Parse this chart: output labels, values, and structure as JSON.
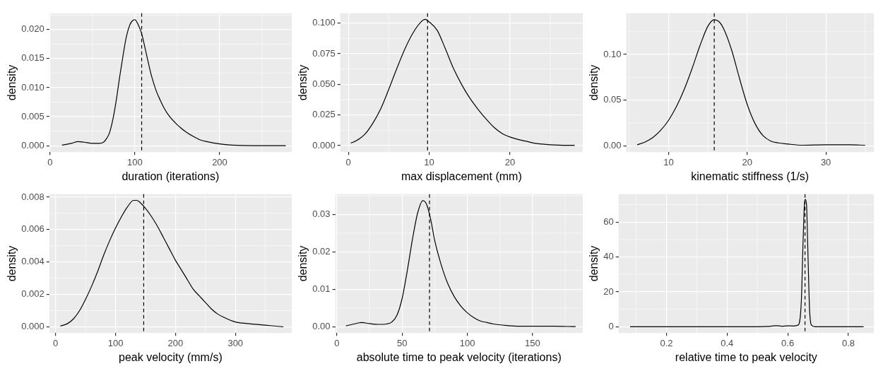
{
  "chart_data": [
    {
      "type": "line",
      "xlabel": "duration (iterations)",
      "ylabel": "density",
      "xlim": [
        -1,
        285
      ],
      "ylim": [
        -0.0011,
        0.0228
      ],
      "xticks": [
        0,
        100,
        200
      ],
      "yticks": [
        {
          "value": 0,
          "label": "0.000"
        },
        {
          "value": 0.005,
          "label": "0.005"
        },
        {
          "value": 0.01,
          "label": "0.010"
        },
        {
          "value": 0.015,
          "label": "0.015"
        },
        {
          "value": 0.02,
          "label": "0.020"
        }
      ],
      "grid": true,
      "ref_lines": [
        {
          "axis": "x",
          "value": 108,
          "line_style": "dashed",
          "color": "#000000"
        }
      ],
      "series": [
        {
          "color": "#000000",
          "x": [
            14,
            25,
            33,
            40,
            50,
            58,
            63,
            66,
            70,
            74,
            78,
            82,
            86,
            90,
            94,
            97,
            100,
            104,
            108,
            112,
            116,
            120,
            125,
            130,
            134,
            140,
            150,
            160,
            170,
            177,
            185,
            200,
            215,
            240,
            278
          ],
          "values": [
            0.0001,
            0.0004,
            0.0007,
            0.0006,
            0.0004,
            0.0004,
            0.0006,
            0.0011,
            0.0022,
            0.0045,
            0.0078,
            0.0118,
            0.0155,
            0.0188,
            0.0208,
            0.0215,
            0.0217,
            0.0208,
            0.0193,
            0.0168,
            0.0142,
            0.0118,
            0.0095,
            0.0078,
            0.0066,
            0.0052,
            0.0036,
            0.0024,
            0.0015,
            0.001,
            0.0007,
            0.0003,
            0.0001,
            0,
            0
          ]
        }
      ]
    },
    {
      "type": "line",
      "xlabel": "max displacement (mm)",
      "ylabel": "density",
      "xlim": [
        -1,
        29
      ],
      "ylim": [
        -0.0053,
        0.108
      ],
      "xticks": [
        0,
        10,
        20
      ],
      "yticks": [
        {
          "value": 0,
          "label": "0.000"
        },
        {
          "value": 0.025,
          "label": "0.025"
        },
        {
          "value": 0.05,
          "label": "0.050"
        },
        {
          "value": 0.075,
          "label": "0.075"
        },
        {
          "value": 0.1,
          "label": "0.100"
        }
      ],
      "grid": true,
      "ref_lines": [
        {
          "axis": "x",
          "value": 9.8,
          "line_style": "dashed",
          "color": "#000000"
        }
      ],
      "series": [
        {
          "color": "#000000",
          "x": [
            0.3,
            1,
            2,
            3,
            4,
            5,
            6,
            7,
            8,
            9,
            9.5,
            10,
            11,
            12,
            13,
            14,
            15,
            16,
            17,
            18,
            19,
            20,
            21,
            22,
            23,
            24,
            25,
            26,
            28
          ],
          "values": [
            0.002,
            0.004,
            0.009,
            0.018,
            0.03,
            0.046,
            0.063,
            0.079,
            0.092,
            0.101,
            0.103,
            0.101,
            0.094,
            0.079,
            0.063,
            0.05,
            0.039,
            0.03,
            0.022,
            0.015,
            0.01,
            0.007,
            0.005,
            0.0035,
            0.002,
            0.0012,
            0.0007,
            0.0004,
            0.0002
          ]
        }
      ]
    },
    {
      "type": "line",
      "xlabel": "kinematic stiffness (1/s)",
      "ylabel": "density",
      "xlim": [
        4.6,
        36.1
      ],
      "ylim": [
        -0.007,
        0.145
      ],
      "xticks": [
        10,
        20,
        30
      ],
      "yticks": [
        {
          "value": 0,
          "label": "0.00"
        },
        {
          "value": 0.05,
          "label": "0.05"
        },
        {
          "value": 0.1,
          "label": "0.10"
        }
      ],
      "grid": true,
      "ref_lines": [
        {
          "axis": "x",
          "value": 15.8,
          "line_style": "dashed",
          "color": "#000000"
        }
      ],
      "series": [
        {
          "color": "#000000",
          "x": [
            6,
            7,
            8,
            9,
            10,
            11,
            12,
            13,
            14,
            15,
            15.8,
            16.5,
            17,
            18,
            19,
            20,
            21,
            22,
            23,
            24,
            25,
            27,
            30,
            33,
            35
          ],
          "values": [
            0.001,
            0.004,
            0.009,
            0.017,
            0.028,
            0.043,
            0.062,
            0.085,
            0.11,
            0.131,
            0.138,
            0.135,
            0.128,
            0.105,
            0.074,
            0.045,
            0.024,
            0.011,
            0.005,
            0.003,
            0.002,
            0.0005,
            0.001,
            0.001,
            0.0005
          ]
        }
      ]
    },
    {
      "type": "line",
      "xlabel": "peak velocity (mm/s)",
      "ylabel": "density",
      "xlim": [
        -10.6,
        394
      ],
      "ylim": [
        -0.00038,
        0.00818
      ],
      "xticks": [
        0,
        100,
        200,
        300
      ],
      "yticks": [
        {
          "value": 0,
          "label": "0.000"
        },
        {
          "value": 0.002,
          "label": "0.002"
        },
        {
          "value": 0.004,
          "label": "0.004"
        },
        {
          "value": 0.006,
          "label": "0.006"
        },
        {
          "value": 0.008,
          "label": "0.008"
        }
      ],
      "grid": true,
      "ref_lines": [
        {
          "axis": "x",
          "value": 147,
          "line_style": "dashed",
          "color": "#000000"
        }
      ],
      "series": [
        {
          "color": "#000000",
          "x": [
            8,
            20,
            30,
            40,
            50,
            60,
            70,
            80,
            90,
            100,
            110,
            120,
            130,
            135,
            140,
            150,
            160,
            170,
            180,
            190,
            200,
            210,
            220,
            230,
            240,
            250,
            260,
            270,
            280,
            300,
            320,
            350,
            380
          ],
          "values": [
            5e-05,
            0.0002,
            0.0005,
            0.001,
            0.0017,
            0.0025,
            0.0034,
            0.0044,
            0.0053,
            0.0061,
            0.0068,
            0.0074,
            0.0078,
            0.0078,
            0.0077,
            0.0073,
            0.0068,
            0.0062,
            0.0055,
            0.0048,
            0.0041,
            0.0035,
            0.0029,
            0.0023,
            0.0019,
            0.0015,
            0.0011,
            0.0008,
            0.0006,
            0.0003,
            0.0002,
            0.0001,
            0
          ]
        }
      ]
    },
    {
      "type": "line",
      "xlabel": "absolute time to peak velocity (iterations)",
      "ylabel": "density",
      "xlim": [
        -1.3,
        188.5
      ],
      "ylim": [
        -0.0017,
        0.0354
      ],
      "xticks": [
        0,
        50,
        100,
        150
      ],
      "yticks": [
        {
          "value": 0,
          "label": "0.00"
        },
        {
          "value": 0.01,
          "label": "0.01"
        },
        {
          "value": 0.02,
          "label": "0.02"
        },
        {
          "value": 0.03,
          "label": "0.03"
        }
      ],
      "grid": true,
      "ref_lines": [
        {
          "axis": "x",
          "value": 71,
          "line_style": "dashed",
          "color": "#000000"
        }
      ],
      "series": [
        {
          "color": "#000000",
          "x": [
            7,
            13,
            19,
            25,
            32,
            38,
            42,
            46,
            50,
            54,
            58,
            62,
            66,
            69,
            72,
            75,
            80,
            85,
            90,
            95,
            100,
            105,
            110,
            115,
            120,
            130,
            140,
            150,
            165,
            183
          ],
          "values": [
            0.0002,
            0.0007,
            0.0011,
            0.0008,
            0.0006,
            0.0007,
            0.0012,
            0.003,
            0.0075,
            0.015,
            0.0235,
            0.0305,
            0.0337,
            0.0325,
            0.0285,
            0.023,
            0.0165,
            0.0115,
            0.008,
            0.0055,
            0.0037,
            0.0024,
            0.0015,
            0.0011,
            0.0007,
            0.0003,
            0.0001,
            0.0001,
            0.0001,
            0
          ]
        }
      ]
    },
    {
      "type": "line",
      "xlabel": "relative time to peak velocity",
      "ylabel": "density",
      "xlim": [
        0.042,
        0.884
      ],
      "ylim": [
        -3.6,
        76
      ],
      "xticks": [
        0.2,
        0.4,
        0.6,
        0.8
      ],
      "yticks": [
        0,
        20,
        40,
        60
      ],
      "grid": true,
      "ref_lines": [
        {
          "axis": "x",
          "value": 0.657,
          "line_style": "dashed",
          "color": "#000000"
        }
      ],
      "series": [
        {
          "color": "#000000",
          "x": [
            0.08,
            0.5,
            0.54,
            0.56,
            0.58,
            0.6,
            0.62,
            0.635,
            0.645,
            0.65,
            0.655,
            0.658,
            0.662,
            0.667,
            0.672,
            0.678,
            0.69,
            0.85
          ],
          "values": [
            0,
            0,
            0.2,
            0.6,
            0.3,
            0.5,
            0.4,
            1,
            15,
            45,
            70,
            73,
            70,
            40,
            10,
            1,
            0,
            0
          ]
        }
      ]
    }
  ]
}
